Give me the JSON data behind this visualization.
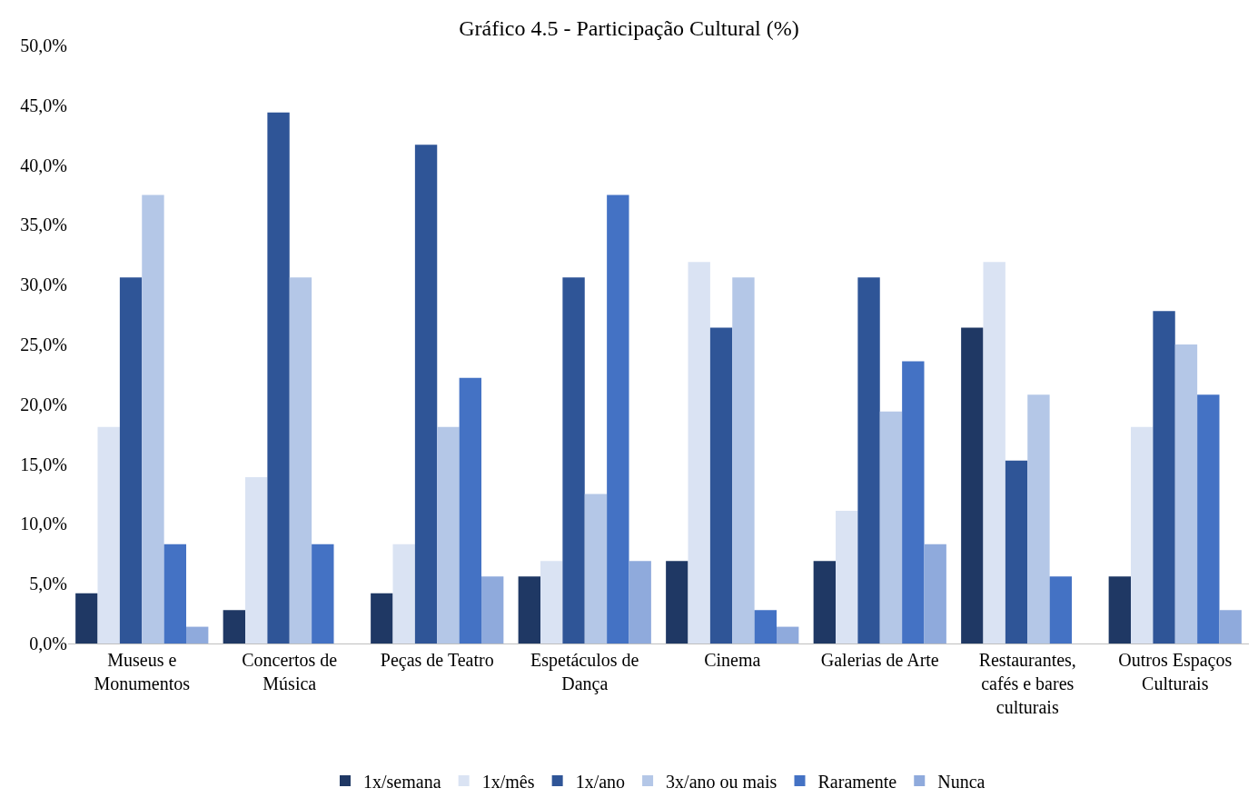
{
  "chart_data": {
    "type": "bar",
    "title": "Gráfico 4.5 - Participação Cultural (%)",
    "categories": [
      "Museus e Monumentos",
      "Concertos de Música",
      "Peças de Teatro",
      "Espetáculos de Dança",
      "Cinema",
      "Galerias de Arte",
      "Restaurantes, cafés e bares culturais",
      "Outros Espaços Culturais"
    ],
    "series": [
      {
        "name": "1x/semana",
        "color": "#1f3864",
        "values": [
          4.2,
          2.8,
          4.2,
          5.6,
          6.9,
          6.9,
          26.4,
          5.6
        ]
      },
      {
        "name": "1x/mês",
        "color": "#dae3f3",
        "values": [
          18.1,
          13.9,
          8.3,
          6.9,
          31.9,
          11.1,
          31.9,
          18.1
        ]
      },
      {
        "name": "1x/ano",
        "color": "#2f5597",
        "values": [
          30.6,
          44.4,
          41.7,
          30.6,
          26.4,
          30.6,
          15.3,
          27.8
        ]
      },
      {
        "name": "3x/ano ou mais",
        "color": "#b4c7e7",
        "values": [
          37.5,
          30.6,
          18.1,
          12.5,
          30.6,
          19.4,
          20.8,
          25.0
        ]
      },
      {
        "name": "Raramente",
        "color": "#4472c4",
        "values": [
          8.3,
          8.3,
          22.2,
          37.5,
          2.8,
          23.6,
          5.6,
          20.8
        ]
      },
      {
        "name": "Nunca",
        "color": "#8faadc",
        "values": [
          1.4,
          0,
          5.6,
          6.9,
          1.4,
          8.3,
          0,
          2.8
        ]
      }
    ],
    "ylim": [
      0,
      50
    ],
    "yticks": [
      {
        "value": 0,
        "label": "0,0%"
      },
      {
        "value": 5,
        "label": "5,0%"
      },
      {
        "value": 10,
        "label": "10,0%"
      },
      {
        "value": 15,
        "label": "15,0%"
      },
      {
        "value": 20,
        "label": "20,0%"
      },
      {
        "value": 25,
        "label": "25,0%"
      },
      {
        "value": 30,
        "label": "30,0%"
      },
      {
        "value": 35,
        "label": "35,0%"
      },
      {
        "value": 40,
        "label": "40,0%"
      },
      {
        "value": 45,
        "label": "45,0%"
      },
      {
        "value": 50,
        "label": "50,0%"
      }
    ],
    "grid": false,
    "legend": "bottom"
  }
}
